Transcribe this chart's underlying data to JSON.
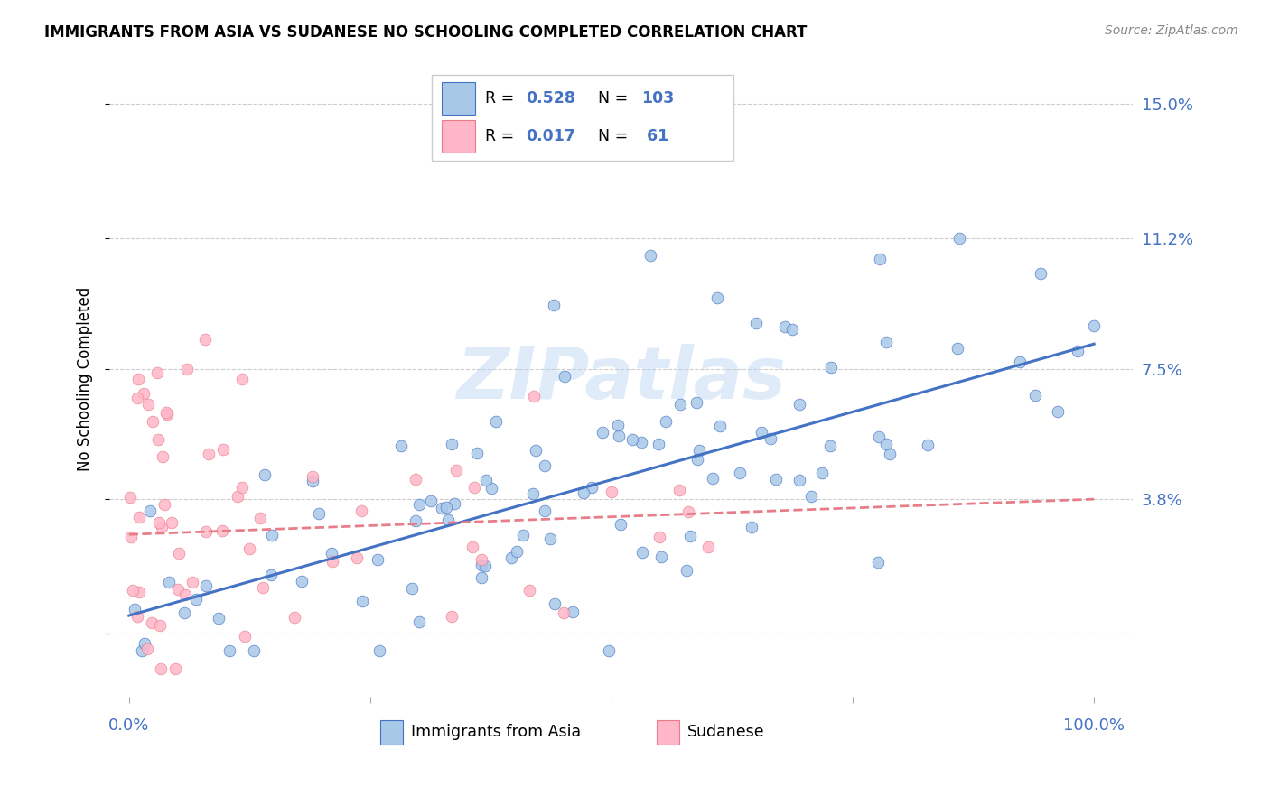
{
  "title": "IMMIGRANTS FROM ASIA VS SUDANESE NO SCHOOLING COMPLETED CORRELATION CHART",
  "source": "Source: ZipAtlas.com",
  "ylabel": "No Schooling Completed",
  "ytick_vals": [
    0.0,
    0.038,
    0.075,
    0.112,
    0.15
  ],
  "ytick_labels": [
    "",
    "3.8%",
    "7.5%",
    "11.2%",
    "15.0%"
  ],
  "xlim": [
    -0.02,
    1.04
  ],
  "ylim": [
    -0.018,
    0.162
  ],
  "color_blue": "#a8c8e8",
  "color_pink": "#ffb6c8",
  "color_blue_dark": "#4472c4",
  "color_pink_dark": "#e87d8a",
  "watermark": "ZIPatlas",
  "blue_trendline_x0": 0.0,
  "blue_trendline_y0": 0.005,
  "blue_trendline_x1": 1.0,
  "blue_trendline_y1": 0.082,
  "pink_trendline_x0": 0.0,
  "pink_trendline_y0": 0.028,
  "pink_trendline_x1": 1.0,
  "pink_trendline_y1": 0.038
}
